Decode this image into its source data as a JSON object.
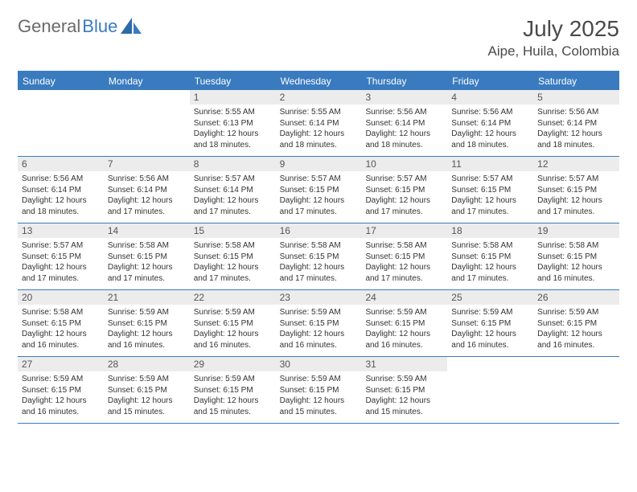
{
  "brand": {
    "text1": "General",
    "text2": "Blue"
  },
  "title": "July 2025",
  "location": "Aipe, Huila, Colombia",
  "colors": {
    "accent": "#3a7bbf",
    "header_bg": "#3a7bbf",
    "daynum_bg": "#ececec",
    "text": "#333333",
    "title_text": "#4a4a4a",
    "logo_gray": "#6a6a6a"
  },
  "weekdays": [
    "Sunday",
    "Monday",
    "Tuesday",
    "Wednesday",
    "Thursday",
    "Friday",
    "Saturday"
  ],
  "weeks": [
    [
      {
        "n": "",
        "sr": "",
        "ss": "",
        "dl": ""
      },
      {
        "n": "",
        "sr": "",
        "ss": "",
        "dl": ""
      },
      {
        "n": "1",
        "sr": "5:55 AM",
        "ss": "6:13 PM",
        "dl": "12 hours and 18 minutes."
      },
      {
        "n": "2",
        "sr": "5:55 AM",
        "ss": "6:14 PM",
        "dl": "12 hours and 18 minutes."
      },
      {
        "n": "3",
        "sr": "5:56 AM",
        "ss": "6:14 PM",
        "dl": "12 hours and 18 minutes."
      },
      {
        "n": "4",
        "sr": "5:56 AM",
        "ss": "6:14 PM",
        "dl": "12 hours and 18 minutes."
      },
      {
        "n": "5",
        "sr": "5:56 AM",
        "ss": "6:14 PM",
        "dl": "12 hours and 18 minutes."
      }
    ],
    [
      {
        "n": "6",
        "sr": "5:56 AM",
        "ss": "6:14 PM",
        "dl": "12 hours and 18 minutes."
      },
      {
        "n": "7",
        "sr": "5:56 AM",
        "ss": "6:14 PM",
        "dl": "12 hours and 17 minutes."
      },
      {
        "n": "8",
        "sr": "5:57 AM",
        "ss": "6:14 PM",
        "dl": "12 hours and 17 minutes."
      },
      {
        "n": "9",
        "sr": "5:57 AM",
        "ss": "6:15 PM",
        "dl": "12 hours and 17 minutes."
      },
      {
        "n": "10",
        "sr": "5:57 AM",
        "ss": "6:15 PM",
        "dl": "12 hours and 17 minutes."
      },
      {
        "n": "11",
        "sr": "5:57 AM",
        "ss": "6:15 PM",
        "dl": "12 hours and 17 minutes."
      },
      {
        "n": "12",
        "sr": "5:57 AM",
        "ss": "6:15 PM",
        "dl": "12 hours and 17 minutes."
      }
    ],
    [
      {
        "n": "13",
        "sr": "5:57 AM",
        "ss": "6:15 PM",
        "dl": "12 hours and 17 minutes."
      },
      {
        "n": "14",
        "sr": "5:58 AM",
        "ss": "6:15 PM",
        "dl": "12 hours and 17 minutes."
      },
      {
        "n": "15",
        "sr": "5:58 AM",
        "ss": "6:15 PM",
        "dl": "12 hours and 17 minutes."
      },
      {
        "n": "16",
        "sr": "5:58 AM",
        "ss": "6:15 PM",
        "dl": "12 hours and 17 minutes."
      },
      {
        "n": "17",
        "sr": "5:58 AM",
        "ss": "6:15 PM",
        "dl": "12 hours and 17 minutes."
      },
      {
        "n": "18",
        "sr": "5:58 AM",
        "ss": "6:15 PM",
        "dl": "12 hours and 17 minutes."
      },
      {
        "n": "19",
        "sr": "5:58 AM",
        "ss": "6:15 PM",
        "dl": "12 hours and 16 minutes."
      }
    ],
    [
      {
        "n": "20",
        "sr": "5:58 AM",
        "ss": "6:15 PM",
        "dl": "12 hours and 16 minutes."
      },
      {
        "n": "21",
        "sr": "5:59 AM",
        "ss": "6:15 PM",
        "dl": "12 hours and 16 minutes."
      },
      {
        "n": "22",
        "sr": "5:59 AM",
        "ss": "6:15 PM",
        "dl": "12 hours and 16 minutes."
      },
      {
        "n": "23",
        "sr": "5:59 AM",
        "ss": "6:15 PM",
        "dl": "12 hours and 16 minutes."
      },
      {
        "n": "24",
        "sr": "5:59 AM",
        "ss": "6:15 PM",
        "dl": "12 hours and 16 minutes."
      },
      {
        "n": "25",
        "sr": "5:59 AM",
        "ss": "6:15 PM",
        "dl": "12 hours and 16 minutes."
      },
      {
        "n": "26",
        "sr": "5:59 AM",
        "ss": "6:15 PM",
        "dl": "12 hours and 16 minutes."
      }
    ],
    [
      {
        "n": "27",
        "sr": "5:59 AM",
        "ss": "6:15 PM",
        "dl": "12 hours and 16 minutes."
      },
      {
        "n": "28",
        "sr": "5:59 AM",
        "ss": "6:15 PM",
        "dl": "12 hours and 15 minutes."
      },
      {
        "n": "29",
        "sr": "5:59 AM",
        "ss": "6:15 PM",
        "dl": "12 hours and 15 minutes."
      },
      {
        "n": "30",
        "sr": "5:59 AM",
        "ss": "6:15 PM",
        "dl": "12 hours and 15 minutes."
      },
      {
        "n": "31",
        "sr": "5:59 AM",
        "ss": "6:15 PM",
        "dl": "12 hours and 15 minutes."
      },
      {
        "n": "",
        "sr": "",
        "ss": "",
        "dl": ""
      },
      {
        "n": "",
        "sr": "",
        "ss": "",
        "dl": ""
      }
    ]
  ],
  "labels": {
    "sunrise": "Sunrise:",
    "sunset": "Sunset:",
    "daylight": "Daylight:"
  }
}
